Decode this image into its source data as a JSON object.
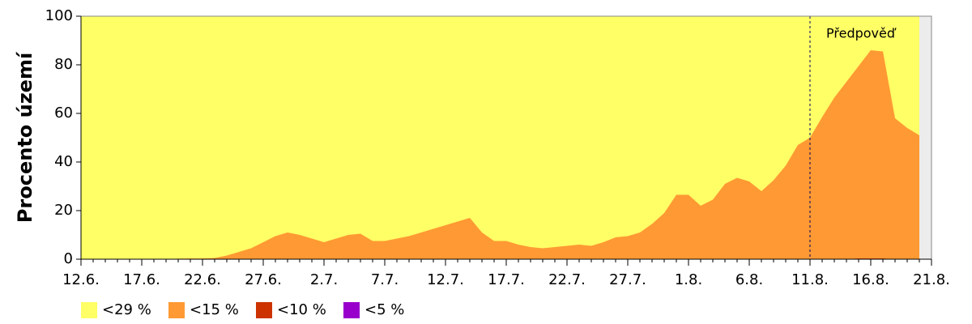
{
  "chart_data": {
    "type": "area",
    "ylabel": "Procento území",
    "x": [
      0,
      1,
      2,
      3,
      4,
      5,
      6,
      7,
      8,
      9,
      10,
      11,
      12,
      13,
      14,
      15,
      16,
      17,
      18,
      19,
      20,
      21,
      22,
      23,
      24,
      25,
      26,
      27,
      28,
      29,
      30,
      31,
      32,
      33,
      34,
      35,
      36,
      37,
      38,
      39,
      40,
      41,
      42,
      43,
      44,
      45,
      46,
      47,
      48,
      49,
      50,
      51,
      52,
      53,
      54,
      55,
      56,
      57,
      58,
      59,
      60,
      61,
      62,
      63,
      64,
      65,
      66,
      67,
      68,
      69
    ],
    "series": [
      {
        "name": "<29 %",
        "color": "#ffff66",
        "values": [
          100,
          100,
          100,
          100,
          100,
          100,
          100,
          100,
          100,
          100,
          100,
          100,
          100,
          100,
          100,
          100,
          100,
          100,
          100,
          100,
          100,
          100,
          100,
          100,
          100,
          100,
          100,
          100,
          100,
          100,
          100,
          100,
          100,
          100,
          100,
          100,
          100,
          100,
          100,
          100,
          100,
          100,
          100,
          100,
          100,
          100,
          100,
          100,
          100,
          100,
          100,
          100,
          100,
          100,
          100,
          100,
          100,
          100,
          100,
          100,
          100,
          100,
          100,
          100,
          100,
          100,
          100,
          100,
          100,
          100
        ]
      },
      {
        "name": "<15 %",
        "color": "#ff9933",
        "values": [
          0,
          0,
          0,
          0,
          0,
          0,
          0,
          0,
          0.2,
          0.3,
          0.3,
          0.5,
          1.5,
          3,
          4.5,
          7,
          9.5,
          11,
          10,
          8.5,
          7,
          8.5,
          10,
          10.5,
          7.5,
          7.5,
          8.5,
          9.5,
          11,
          12.5,
          14,
          15.5,
          17,
          11,
          7.5,
          7.5,
          6,
          5,
          4.5,
          5,
          5.5,
          6,
          5.5,
          7,
          9,
          9.5,
          11,
          14.5,
          19,
          26.5,
          26.5,
          22,
          24.5,
          31,
          33.5,
          32,
          28,
          32.5,
          38.5,
          47,
          50,
          58.5,
          66.5,
          73,
          79.5,
          86,
          85.5,
          58,
          54,
          51
        ]
      },
      {
        "name": "<10 %",
        "color": "#cc3300",
        "values": [
          0,
          0,
          0,
          0,
          0,
          0,
          0,
          0,
          0,
          0,
          0,
          0,
          0,
          0,
          0,
          0,
          0,
          0,
          0,
          0,
          0,
          0,
          0,
          0,
          0,
          0,
          0,
          0,
          0,
          0,
          0,
          0,
          0,
          0,
          0,
          0,
          0,
          0,
          0,
          0,
          0,
          0,
          0,
          0,
          0,
          0,
          0,
          0,
          0,
          0,
          0,
          0,
          0,
          0,
          0,
          0,
          0,
          0,
          0,
          0,
          0,
          0,
          0,
          0,
          0.3,
          0.3,
          0.3,
          0,
          0,
          0
        ]
      },
      {
        "name": "<5 %",
        "color": "#9900cc",
        "values": [
          0,
          0,
          0,
          0,
          0,
          0,
          0,
          0,
          0,
          0,
          0,
          0,
          0,
          0,
          0,
          0,
          0,
          0,
          0,
          0,
          0,
          0,
          0,
          0,
          0,
          0,
          0,
          0,
          0,
          0,
          0,
          0,
          0,
          0,
          0,
          0,
          0,
          0,
          0,
          0,
          0,
          0,
          0,
          0,
          0,
          0,
          0,
          0,
          0,
          0,
          0,
          0,
          0,
          0,
          0,
          0,
          0,
          0,
          0,
          0,
          0,
          0,
          0,
          0,
          0,
          0,
          0,
          0,
          0,
          0
        ]
      }
    ],
    "xlim": [
      0,
      70
    ],
    "xticks": [
      {
        "value": 0,
        "label": "12.6."
      },
      {
        "value": 5,
        "label": "17.6."
      },
      {
        "value": 10,
        "label": "22.6."
      },
      {
        "value": 15,
        "label": "27.6."
      },
      {
        "value": 20,
        "label": "2.7."
      },
      {
        "value": 25,
        "label": "7.7."
      },
      {
        "value": 30,
        "label": "12.7."
      },
      {
        "value": 35,
        "label": "17.7."
      },
      {
        "value": 40,
        "label": "22.7."
      },
      {
        "value": 45,
        "label": "27.7."
      },
      {
        "value": 50,
        "label": "1.8."
      },
      {
        "value": 55,
        "label": "6.8."
      },
      {
        "value": 60,
        "label": "11.8."
      },
      {
        "value": 65,
        "label": "16.8."
      },
      {
        "value": 70,
        "label": "21.8."
      }
    ],
    "ylim": [
      0,
      100
    ],
    "yticks": [
      0,
      20,
      40,
      60,
      80,
      100
    ],
    "forecast": {
      "x": 60,
      "label": "Předpověď"
    },
    "legend": "bottom-left"
  }
}
